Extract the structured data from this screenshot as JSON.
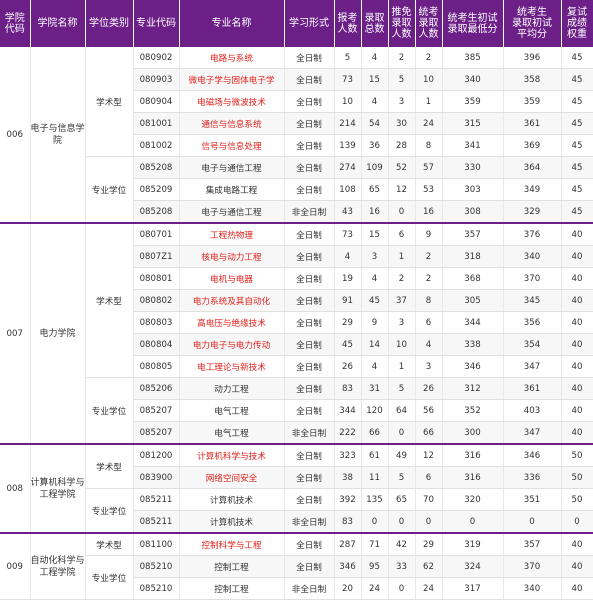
{
  "headers": [
    {
      "key": "code",
      "label": "学院\n代码"
    },
    {
      "key": "college",
      "label": "学院名称"
    },
    {
      "key": "type",
      "label": "学位类别"
    },
    {
      "key": "mcode",
      "label": "专业代码"
    },
    {
      "key": "major",
      "label": "专业名称"
    },
    {
      "key": "mode",
      "label": "学习形式"
    },
    {
      "key": "apply",
      "label": "报考\n人数"
    },
    {
      "key": "admit",
      "label": "录取\n总数"
    },
    {
      "key": "exempt",
      "label": "推免\n录取\n人数"
    },
    {
      "key": "unified",
      "label": "统考\n录取\n人数"
    },
    {
      "key": "minscore",
      "label": "统考生初试\n录取最低分"
    },
    {
      "key": "avgscore",
      "label": "统考生\n录取初试\n平均分"
    },
    {
      "key": "weight",
      "label": "复试\n成绩\n权重"
    }
  ],
  "colleges": [
    {
      "code": "006",
      "name": "电子与信息学院",
      "groups": [
        {
          "type": "学术型",
          "rows": [
            {
              "mcode": "080902",
              "major": "电路与系统",
              "hl": true,
              "mode": "全日制",
              "apply": "5",
              "admit": "4",
              "exempt": "2",
              "unified": "2",
              "minscore": "385",
              "avgscore": "396",
              "weight": "45"
            },
            {
              "mcode": "080903",
              "major": "微电子学与固体电子学",
              "hl": true,
              "mode": "全日制",
              "apply": "73",
              "admit": "15",
              "exempt": "5",
              "unified": "10",
              "minscore": "340",
              "avgscore": "358",
              "weight": "45"
            },
            {
              "mcode": "080904",
              "major": "电磁场与微波技术",
              "hl": true,
              "mode": "全日制",
              "apply": "10",
              "admit": "4",
              "exempt": "3",
              "unified": "1",
              "minscore": "359",
              "avgscore": "359",
              "weight": "45"
            },
            {
              "mcode": "081001",
              "major": "通信与信息系统",
              "hl": true,
              "mode": "全日制",
              "apply": "214",
              "admit": "54",
              "exempt": "30",
              "unified": "24",
              "minscore": "315",
              "avgscore": "361",
              "weight": "45"
            },
            {
              "mcode": "081002",
              "major": "信号与信息处理",
              "hl": true,
              "mode": "全日制",
              "apply": "139",
              "admit": "36",
              "exempt": "28",
              "unified": "8",
              "minscore": "341",
              "avgscore": "369",
              "weight": "45"
            }
          ]
        },
        {
          "type": "专业学位",
          "rows": [
            {
              "mcode": "085208",
              "major": "电子与通信工程",
              "hl": false,
              "mode": "全日制",
              "apply": "274",
              "admit": "109",
              "exempt": "52",
              "unified": "57",
              "minscore": "330",
              "avgscore": "364",
              "weight": "45"
            },
            {
              "mcode": "085209",
              "major": "集成电路工程",
              "hl": false,
              "mode": "全日制",
              "apply": "108",
              "admit": "65",
              "exempt": "12",
              "unified": "53",
              "minscore": "303",
              "avgscore": "349",
              "weight": "45"
            },
            {
              "mcode": "085208",
              "major": "电子与通信工程",
              "hl": false,
              "mode": "非全日制",
              "apply": "43",
              "admit": "16",
              "exempt": "0",
              "unified": "16",
              "minscore": "308",
              "avgscore": "329",
              "weight": "45"
            }
          ]
        }
      ]
    },
    {
      "code": "007",
      "name": "电力学院",
      "groups": [
        {
          "type": "学术型",
          "rows": [
            {
              "mcode": "080701",
              "major": "工程热物理",
              "hl": true,
              "mode": "全日制",
              "apply": "73",
              "admit": "15",
              "exempt": "6",
              "unified": "9",
              "minscore": "357",
              "avgscore": "376",
              "weight": "40"
            },
            {
              "mcode": "0807Z1",
              "major": "核电与动力工程",
              "hl": true,
              "mode": "全日制",
              "apply": "4",
              "admit": "3",
              "exempt": "1",
              "unified": "2",
              "minscore": "318",
              "avgscore": "340",
              "weight": "40"
            },
            {
              "mcode": "080801",
              "major": "电机与电器",
              "hl": true,
              "mode": "全日制",
              "apply": "19",
              "admit": "4",
              "exempt": "2",
              "unified": "2",
              "minscore": "368",
              "avgscore": "370",
              "weight": "40"
            },
            {
              "mcode": "080802",
              "major": "电力系统及其自动化",
              "hl": true,
              "mode": "全日制",
              "apply": "91",
              "admit": "45",
              "exempt": "37",
              "unified": "8",
              "minscore": "305",
              "avgscore": "345",
              "weight": "40"
            },
            {
              "mcode": "080803",
              "major": "高电压与绝缘技术",
              "hl": true,
              "mode": "全日制",
              "apply": "29",
              "admit": "9",
              "exempt": "3",
              "unified": "6",
              "minscore": "344",
              "avgscore": "356",
              "weight": "40"
            },
            {
              "mcode": "080804",
              "major": "电力电子与电力传动",
              "hl": true,
              "mode": "全日制",
              "apply": "45",
              "admit": "14",
              "exempt": "10",
              "unified": "4",
              "minscore": "338",
              "avgscore": "354",
              "weight": "40"
            },
            {
              "mcode": "080805",
              "major": "电工理论与新技术",
              "hl": true,
              "mode": "全日制",
              "apply": "26",
              "admit": "4",
              "exempt": "1",
              "unified": "3",
              "minscore": "346",
              "avgscore": "347",
              "weight": "40"
            }
          ]
        },
        {
          "type": "专业学位",
          "rows": [
            {
              "mcode": "085206",
              "major": "动力工程",
              "hl": false,
              "mode": "全日制",
              "apply": "83",
              "admit": "31",
              "exempt": "5",
              "unified": "26",
              "minscore": "312",
              "avgscore": "361",
              "weight": "40"
            },
            {
              "mcode": "085207",
              "major": "电气工程",
              "hl": false,
              "mode": "全日制",
              "apply": "344",
              "admit": "120",
              "exempt": "64",
              "unified": "56",
              "minscore": "352",
              "avgscore": "403",
              "weight": "40"
            },
            {
              "mcode": "085207",
              "major": "电气工程",
              "hl": false,
              "mode": "非全日制",
              "apply": "222",
              "admit": "66",
              "exempt": "0",
              "unified": "66",
              "minscore": "300",
              "avgscore": "347",
              "weight": "40"
            }
          ]
        }
      ]
    },
    {
      "code": "008",
      "name": "计算机科学与工程学院",
      "groups": [
        {
          "type": "学术型",
          "rows": [
            {
              "mcode": "081200",
              "major": "计算机科学与技术",
              "hl": true,
              "mode": "全日制",
              "apply": "323",
              "admit": "61",
              "exempt": "49",
              "unified": "12",
              "minscore": "316",
              "avgscore": "346",
              "weight": "50"
            },
            {
              "mcode": "083900",
              "major": "网络空间安全",
              "hl": true,
              "mode": "全日制",
              "apply": "38",
              "admit": "11",
              "exempt": "5",
              "unified": "6",
              "minscore": "316",
              "avgscore": "336",
              "weight": "50"
            }
          ]
        },
        {
          "type": "专业学位",
          "rows": [
            {
              "mcode": "085211",
              "major": "计算机技术",
              "hl": false,
              "mode": "全日制",
              "apply": "392",
              "admit": "135",
              "exempt": "65",
              "unified": "70",
              "minscore": "320",
              "avgscore": "351",
              "weight": "50"
            },
            {
              "mcode": "085211",
              "major": "计算机技术",
              "hl": false,
              "mode": "非全日制",
              "apply": "83",
              "admit": "0",
              "exempt": "0",
              "unified": "0",
              "minscore": "0",
              "avgscore": "0",
              "weight": "0"
            }
          ]
        }
      ]
    },
    {
      "code": "009",
      "name": "自动化科学与工程学院",
      "groups": [
        {
          "type": "学术型",
          "rows": [
            {
              "mcode": "081100",
              "major": "控制科学与工程",
              "hl": true,
              "mode": "全日制",
              "apply": "287",
              "admit": "71",
              "exempt": "42",
              "unified": "29",
              "minscore": "319",
              "avgscore": "357",
              "weight": "40"
            }
          ]
        },
        {
          "type": "专业学位",
          "rows": [
            {
              "mcode": "085210",
              "major": "控制工程",
              "hl": false,
              "mode": "全日制",
              "apply": "346",
              "admit": "95",
              "exempt": "33",
              "unified": "62",
              "minscore": "324",
              "avgscore": "370",
              "weight": "40"
            },
            {
              "mcode": "085210",
              "major": "控制工程",
              "hl": false,
              "mode": "非全日制",
              "apply": "20",
              "admit": "24",
              "exempt": "0",
              "unified": "24",
              "minscore": "317",
              "avgscore": "340",
              "weight": "40"
            }
          ]
        }
      ]
    }
  ]
}
